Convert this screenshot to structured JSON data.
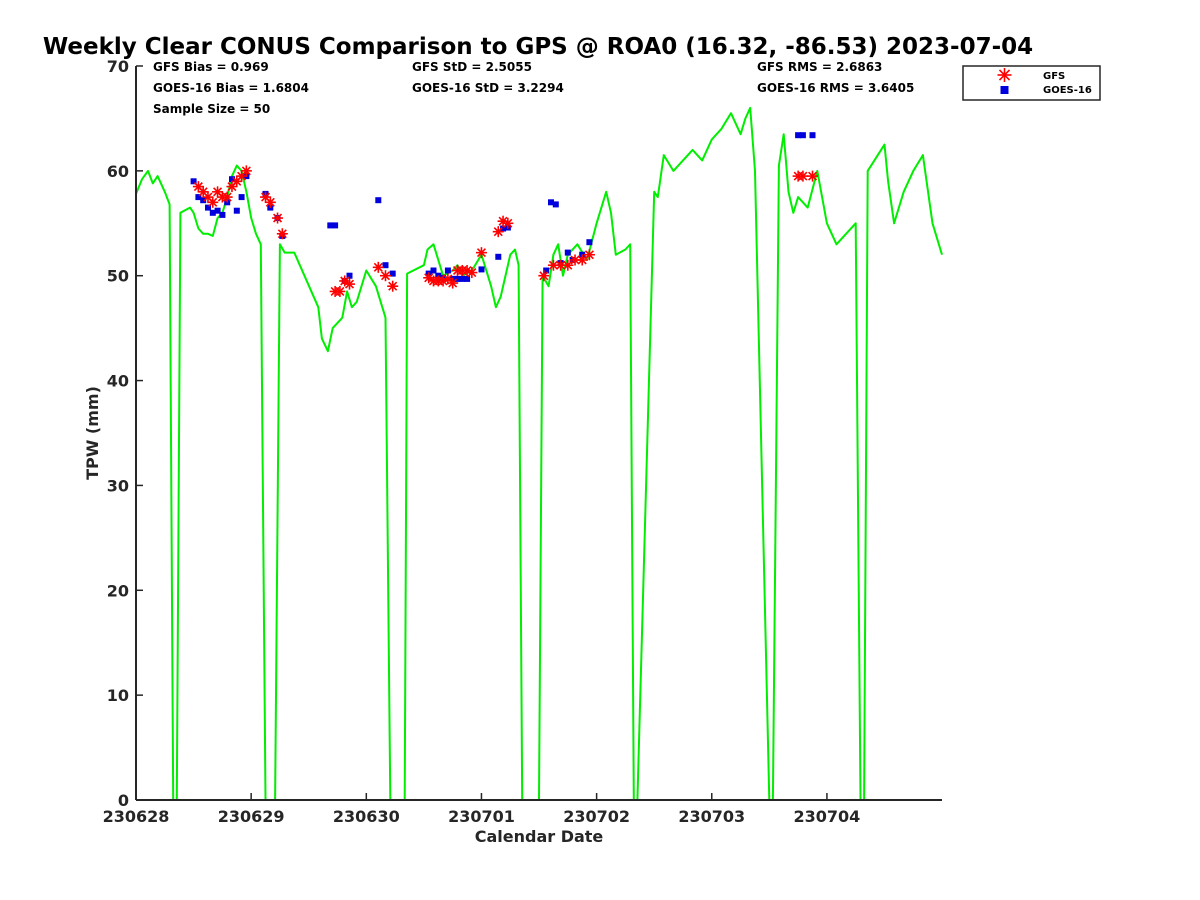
{
  "chart_data": {
    "type": "line",
    "title": "Weekly Clear CONUS Comparison to GPS @ ROA0 (16.32, -86.53) 2023-07-04",
    "xlabel": "Calendar Date",
    "ylabel": "TPW (mm)",
    "xlim": [
      "2023-06-28 00:00",
      "2023-07-04 23:59"
    ],
    "ylim": [
      0,
      70
    ],
    "yticks": [
      0,
      10,
      20,
      30,
      40,
      50,
      60,
      70
    ],
    "xticks": [
      {
        "date": "2023-06-28",
        "label": "230628"
      },
      {
        "date": "2023-06-29",
        "label": "230629"
      },
      {
        "date": "2023-06-30",
        "label": "230630"
      },
      {
        "date": "2023-07-01",
        "label": "230701"
      },
      {
        "date": "2023-07-02",
        "label": "230702"
      },
      {
        "date": "2023-07-03",
        "label": "230703"
      },
      {
        "date": "2023-07-04",
        "label": "230704"
      }
    ],
    "grid": false,
    "legend_position": "outside top-right",
    "stats": [
      [
        "GFS Bias = 0.969",
        "GOES-16 Bias = 1.6804",
        "Sample Size = 50"
      ],
      [
        "GFS StD = 2.5055",
        "GOES-16 StD = 3.2294"
      ],
      [
        "GFS RMS = 2.6863",
        "GOES-16 RMS = 3.6405"
      ]
    ],
    "colors": {
      "gps": "#00ee00",
      "gfs": "#ff0000",
      "goes": "#0000dd"
    },
    "series": [
      {
        "name": "",
        "style": "line",
        "color": "#00ee00",
        "x": [
          "2023-06-28 00:00",
          "2023-06-28 01:15",
          "2023-06-28 02:30",
          "2023-06-28 03:30",
          "2023-06-28 04:30",
          "2023-06-28 06:00",
          "2023-06-28 07:00",
          "2023-06-28 07:45",
          "2023-06-28 08:30",
          "2023-06-28 09:15",
          "2023-06-28 11:15",
          "2023-06-28 12:00",
          "2023-06-28 13:00",
          "2023-06-28 14:00",
          "2023-06-28 15:00",
          "2023-06-28 16:00",
          "2023-06-28 17:00",
          "2023-06-28 18:00",
          "2023-06-28 19:00",
          "2023-06-28 20:00",
          "2023-06-28 21:00",
          "2023-06-28 22:00",
          "2023-06-28 23:00",
          "2023-06-29 00:00",
          "2023-06-29 01:00",
          "2023-06-29 02:00",
          "2023-06-29 03:00",
          "2023-06-29 04:00",
          "2023-06-29 05:00",
          "2023-06-29 06:00",
          "2023-06-29 07:00",
          "2023-06-29 08:00",
          "2023-06-29 09:00",
          "2023-06-29 14:00",
          "2023-06-29 14:45",
          "2023-06-29 16:00",
          "2023-06-29 17:00",
          "2023-06-29 18:00",
          "2023-06-29 19:00",
          "2023-06-29 20:00",
          "2023-06-29 21:00",
          "2023-06-29 22:00",
          "2023-06-30 00:00",
          "2023-06-30 02:00",
          "2023-06-30 04:00",
          "2023-06-30 05:00",
          "2023-06-30 06:00",
          "2023-06-30 07:00",
          "2023-06-30 08:00",
          "2023-06-30 08:30",
          "2023-06-30 12:00",
          "2023-06-30 12:45",
          "2023-06-30 14:00",
          "2023-06-30 16:00",
          "2023-06-30 18:00",
          "2023-06-30 19:00",
          "2023-06-30 20:00",
          "2023-06-30 22:00",
          "2023-07-01 00:00",
          "2023-07-01 02:00",
          "2023-07-01 03:00",
          "2023-07-01 04:00",
          "2023-07-01 06:00",
          "2023-07-01 07:00",
          "2023-07-01 07:45",
          "2023-07-01 08:30",
          "2023-07-01 12:00",
          "2023-07-01 12:45",
          "2023-07-01 14:00",
          "2023-07-01 15:00",
          "2023-07-01 16:00",
          "2023-07-01 17:00",
          "2023-07-01 18:00",
          "2023-07-01 20:00",
          "2023-07-01 22:00",
          "2023-07-02 00:00",
          "2023-07-02 02:00",
          "2023-07-02 03:00",
          "2023-07-02 04:00",
          "2023-07-02 06:00",
          "2023-07-02 07:00",
          "2023-07-02 07:45",
          "2023-07-02 08:30",
          "2023-07-02 12:00",
          "2023-07-02 12:45",
          "2023-07-02 14:00",
          "2023-07-02 16:00",
          "2023-07-02 18:00",
          "2023-07-02 20:00",
          "2023-07-02 22:00",
          "2023-07-03 00:00",
          "2023-07-03 02:00",
          "2023-07-03 04:00",
          "2023-07-03 06:00",
          "2023-07-03 07:00",
          "2023-07-03 08:00",
          "2023-07-03 09:00",
          "2023-07-03 12:00",
          "2023-07-03 12:45",
          "2023-07-03 14:00",
          "2023-07-03 15:00",
          "2023-07-03 16:00",
          "2023-07-03 17:00",
          "2023-07-03 18:00",
          "2023-07-03 20:00",
          "2023-07-03 22:00",
          "2023-07-04 00:00",
          "2023-07-04 02:00",
          "2023-07-04 04:00",
          "2023-07-04 06:00",
          "2023-07-04 07:00",
          "2023-07-04 07:45",
          "2023-07-04 08:30",
          "2023-07-04 12:00",
          "2023-07-04 12:45",
          "2023-07-04 14:00",
          "2023-07-04 16:00",
          "2023-07-04 18:00",
          "2023-07-04 20:00",
          "2023-07-04 22:00",
          "2023-07-04 23:59"
        ],
        "y": [
          57.8,
          59.2,
          60.0,
          58.8,
          59.5,
          58.0,
          56.8,
          0,
          0,
          56.0,
          56.5,
          56.0,
          54.5,
          54.0,
          54.0,
          53.8,
          55.5,
          56.0,
          57.5,
          59.5,
          60.5,
          60.0,
          58.0,
          55.5,
          54.0,
          53.0,
          0,
          0,
          0,
          53.0,
          52.2,
          52.2,
          52.2,
          47.0,
          44.0,
          42.8,
          45.0,
          45.5,
          46.0,
          48.5,
          47.0,
          47.5,
          50.5,
          49.0,
          46.0,
          0,
          0,
          0,
          0,
          50.2,
          51.0,
          52.5,
          53.0,
          50.0,
          50.5,
          51.0,
          50.0,
          50.5,
          52.0,
          49.0,
          47.0,
          48.0,
          52.0,
          52.5,
          51.0,
          0,
          0,
          50.0,
          49.0,
          52.0,
          53.0,
          50.0,
          52.0,
          53.0,
          51.5,
          55.0,
          58.0,
          56.0,
          52.0,
          52.5,
          53.0,
          0,
          0,
          58.0,
          57.5,
          61.5,
          60.0,
          61.0,
          62.0,
          61.0,
          63.0,
          64.0,
          65.5,
          63.5,
          65.0,
          66.0,
          60.0,
          0,
          0,
          60.5,
          63.5,
          58.0,
          56.0,
          57.5,
          56.5,
          60.0,
          55.0,
          53.0,
          54.0,
          55.0,
          0,
          0,
          60.0,
          62.5,
          59.0,
          55.0,
          58.0,
          60.0,
          61.5,
          55.0,
          52.0
        ]
      },
      {
        "name": "GFS",
        "style": "marker-asterisk",
        "color": "#ff0000",
        "x": [
          "2023-06-28 13:00",
          "2023-06-28 14:00",
          "2023-06-28 15:00",
          "2023-06-28 16:00",
          "2023-06-28 17:00",
          "2023-06-28 18:00",
          "2023-06-28 19:00",
          "2023-06-28 20:00",
          "2023-06-28 21:00",
          "2023-06-28 22:00",
          "2023-06-28 23:00",
          "2023-06-29 03:00",
          "2023-06-29 04:00",
          "2023-06-29 05:30",
          "2023-06-29 06:30",
          "2023-06-29 17:30",
          "2023-06-29 18:30",
          "2023-06-29 19:30",
          "2023-06-29 20:30",
          "2023-06-30 02:30",
          "2023-06-30 04:00",
          "2023-06-30 05:30",
          "2023-06-30 13:00",
          "2023-06-30 14:00",
          "2023-06-30 15:00",
          "2023-06-30 16:00",
          "2023-06-30 17:00",
          "2023-06-30 18:00",
          "2023-06-30 19:00",
          "2023-06-30 20:00",
          "2023-06-30 21:00",
          "2023-06-30 22:00",
          "2023-07-01 00:00",
          "2023-07-01 03:30",
          "2023-07-01 04:30",
          "2023-07-01 05:30",
          "2023-07-01 13:00",
          "2023-07-01 15:00",
          "2023-07-01 16:30",
          "2023-07-01 18:00",
          "2023-07-01 19:30",
          "2023-07-01 21:00",
          "2023-07-01 22:30",
          "2023-07-03 18:00",
          "2023-07-03 19:00",
          "2023-07-03 21:00"
        ],
        "y": [
          58.5,
          58.0,
          57.5,
          57.0,
          58.0,
          57.5,
          57.5,
          58.5,
          59.0,
          59.5,
          60.0,
          57.5,
          57.0,
          55.5,
          54.0,
          48.5,
          48.5,
          49.5,
          49.2,
          50.8,
          50.0,
          49.0,
          49.8,
          49.5,
          49.5,
          49.5,
          49.7,
          49.3,
          50.5,
          50.5,
          50.5,
          50.3,
          52.2,
          54.2,
          55.2,
          55.0,
          50.0,
          51.0,
          51.0,
          51.0,
          51.5,
          51.5,
          52.0,
          59.5,
          59.5,
          59.5
        ]
      },
      {
        "name": "GOES-16",
        "style": "marker-square",
        "color": "#0000dd",
        "x": [
          "2023-06-28 12:00",
          "2023-06-28 13:00",
          "2023-06-28 14:00",
          "2023-06-28 15:00",
          "2023-06-28 16:00",
          "2023-06-28 17:00",
          "2023-06-28 18:00",
          "2023-06-28 19:00",
          "2023-06-28 20:00",
          "2023-06-28 21:00",
          "2023-06-28 22:00",
          "2023-06-28 23:00",
          "2023-06-29 03:00",
          "2023-06-29 04:00",
          "2023-06-29 05:30",
          "2023-06-29 06:30",
          "2023-06-29 16:30",
          "2023-06-29 17:30",
          "2023-06-29 19:30",
          "2023-06-29 20:30",
          "2023-06-30 02:30",
          "2023-06-30 04:00",
          "2023-06-30 05:30",
          "2023-06-30 13:00",
          "2023-06-30 14:00",
          "2023-06-30 15:00",
          "2023-06-30 16:00",
          "2023-06-30 17:00",
          "2023-06-30 18:00",
          "2023-06-30 19:00",
          "2023-06-30 20:00",
          "2023-06-30 21:00",
          "2023-07-01 00:00",
          "2023-07-01 03:30",
          "2023-07-01 04:30",
          "2023-07-01 05:30",
          "2023-07-01 13:30",
          "2023-07-01 14:30",
          "2023-07-01 15:30",
          "2023-07-01 16:30",
          "2023-07-01 18:00",
          "2023-07-01 19:00",
          "2023-07-01 21:00",
          "2023-07-01 22:30",
          "2023-07-03 18:00",
          "2023-07-03 19:00",
          "2023-07-03 21:00"
        ],
        "y": [
          59.0,
          57.5,
          57.2,
          56.5,
          56.0,
          56.2,
          55.8,
          57.0,
          59.2,
          56.2,
          57.5,
          59.5,
          57.8,
          56.5,
          55.5,
          53.8,
          54.8,
          54.8,
          49.5,
          50.0,
          57.2,
          51.0,
          50.2,
          50.2,
          50.5,
          50.0,
          49.8,
          50.5,
          49.7,
          49.7,
          49.7,
          49.7,
          50.6,
          51.8,
          54.5,
          54.6,
          50.5,
          57.0,
          56.8,
          51.2,
          52.2,
          51.5,
          52.0,
          53.2,
          63.4,
          63.4,
          63.4
        ]
      }
    ]
  }
}
